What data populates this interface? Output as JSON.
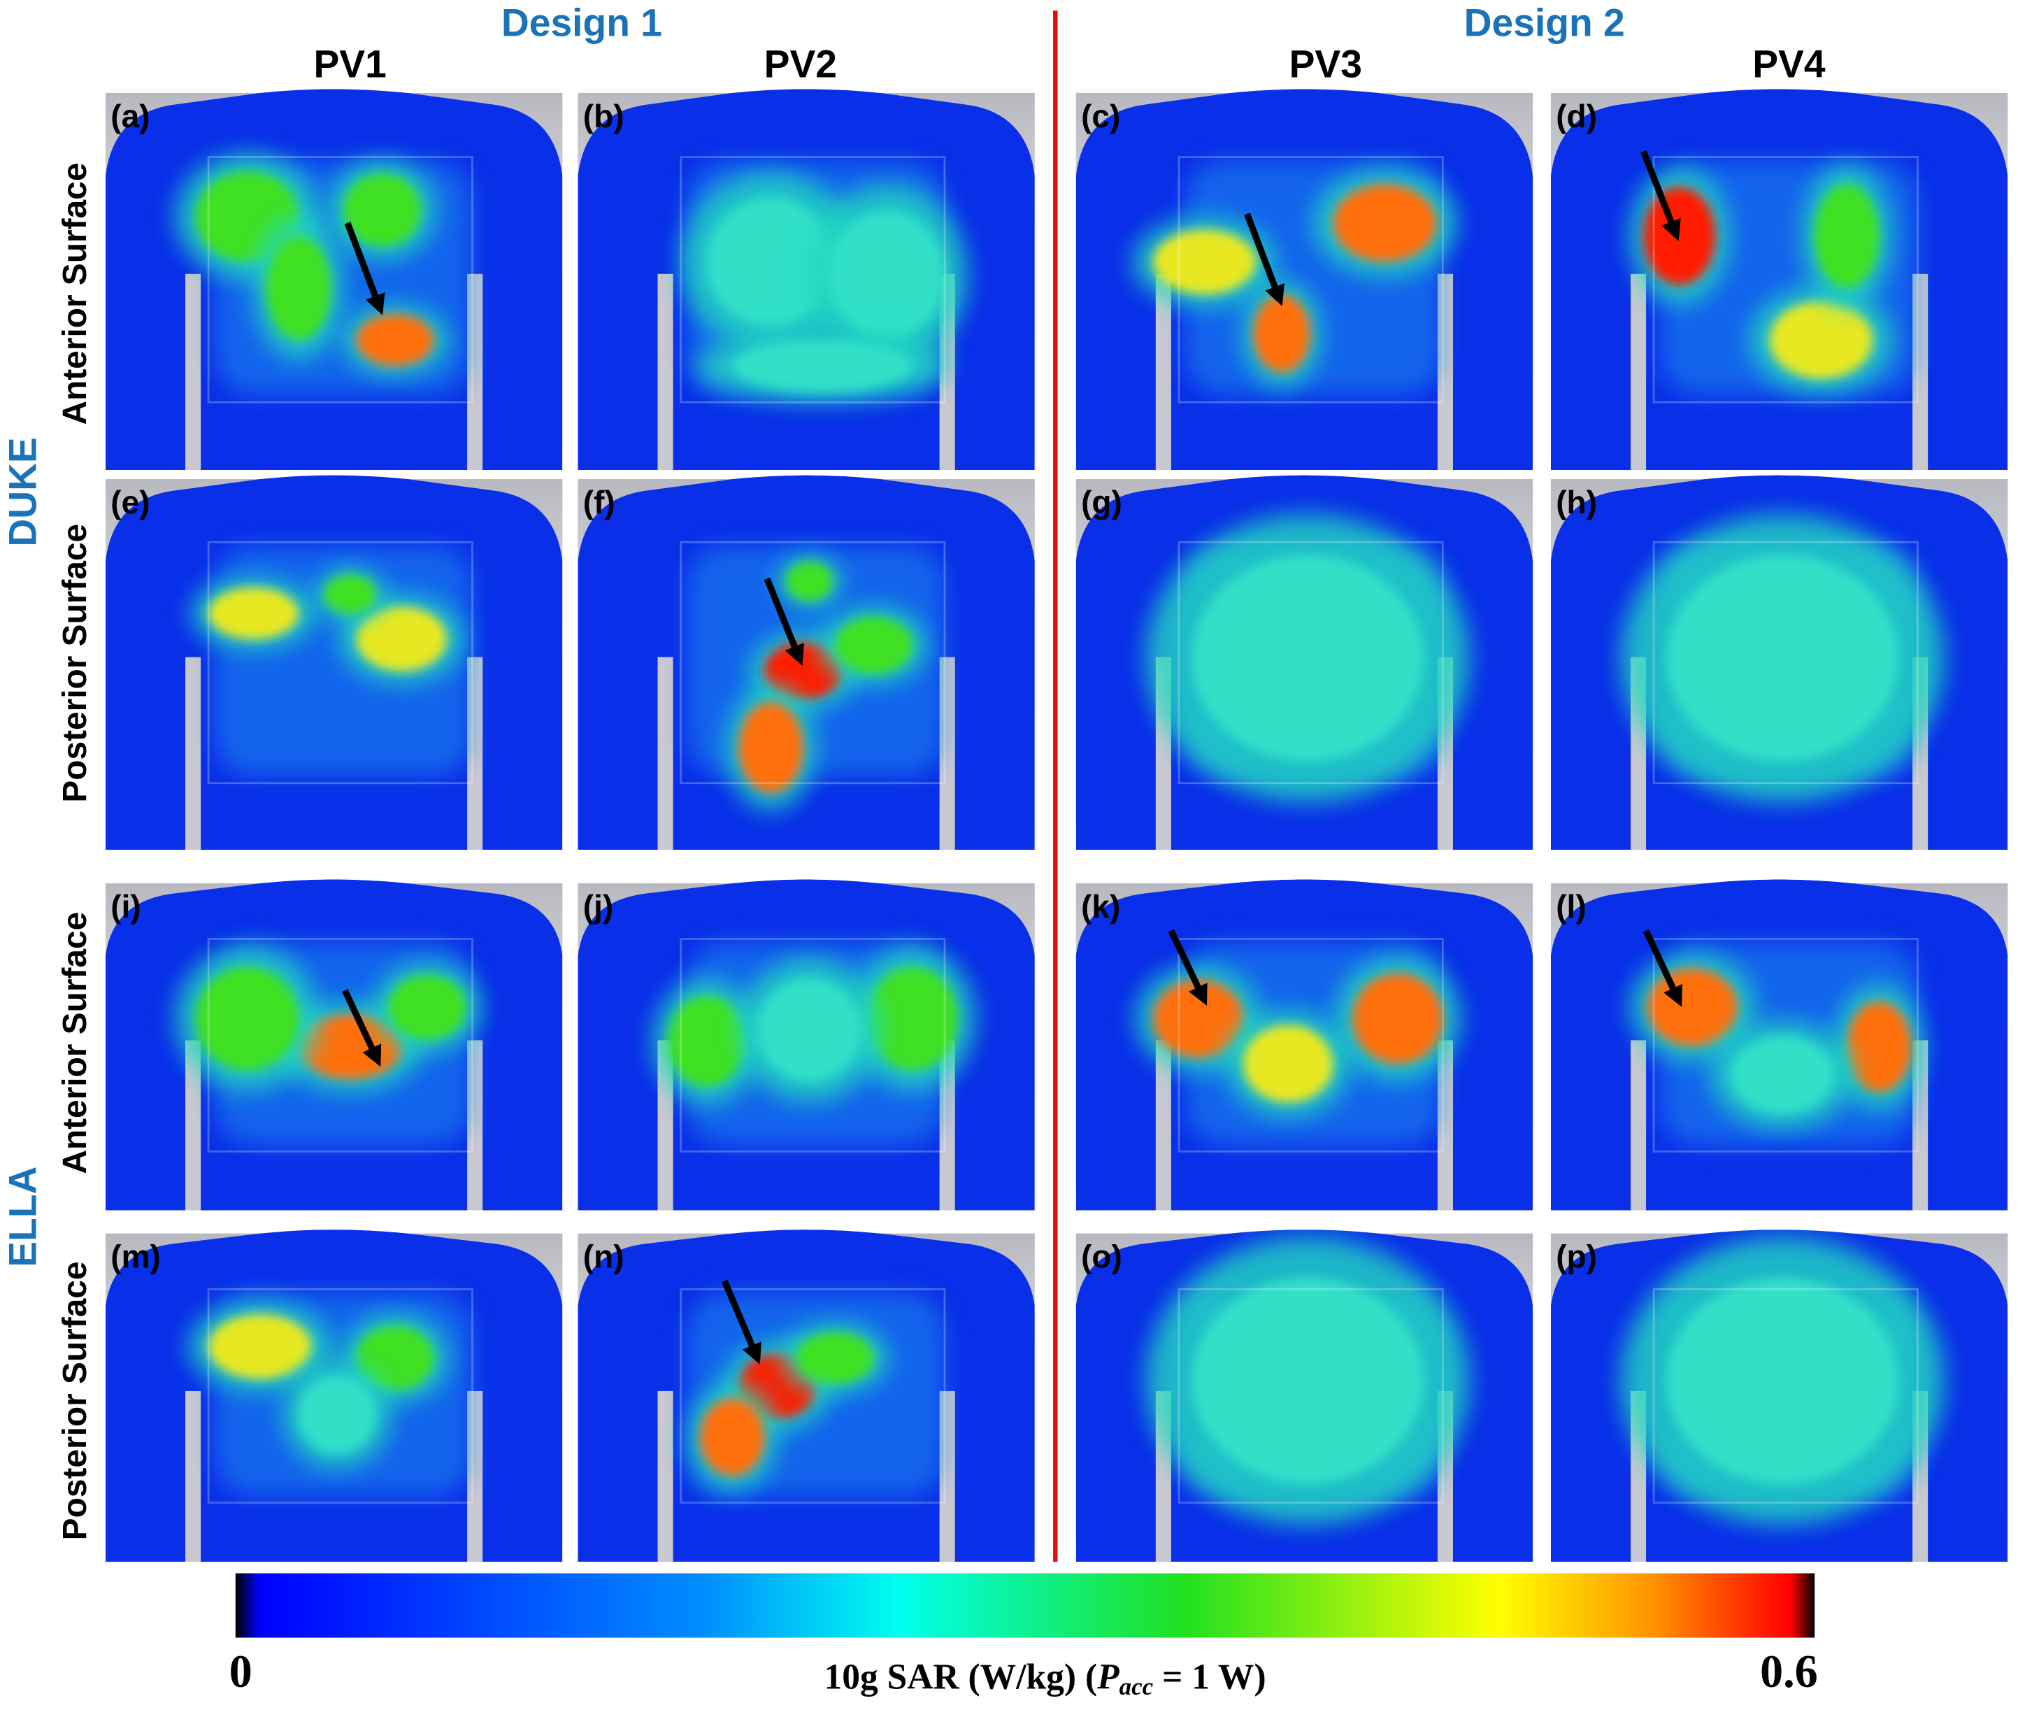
{
  "designs": [
    "Design 1",
    "Design 2"
  ],
  "columns": [
    "PV1",
    "PV2",
    "PV3",
    "PV4"
  ],
  "subjects": [
    {
      "label": "DUKE",
      "rows": [
        "Anterior Surface",
        "Posterior Surface"
      ]
    },
    {
      "label": "ELLA",
      "rows": [
        "Anterior Surface",
        "Posterior Surface"
      ]
    }
  ],
  "panels": [
    "(a)",
    "(b)",
    "(c)",
    "(d)",
    "(e)",
    "(f)",
    "(g)",
    "(h)",
    "(i)",
    "(j)",
    "(k)",
    "(l)",
    "(m)",
    "(n)",
    "(o)",
    "(p)"
  ],
  "colorbar": {
    "min": 0,
    "max": 0.6,
    "title": {
      "prefix": "10g SAR (W/kg) (",
      "symbol": "P",
      "subscript": "acc",
      "suffix": " = 1 W)"
    }
  }
}
